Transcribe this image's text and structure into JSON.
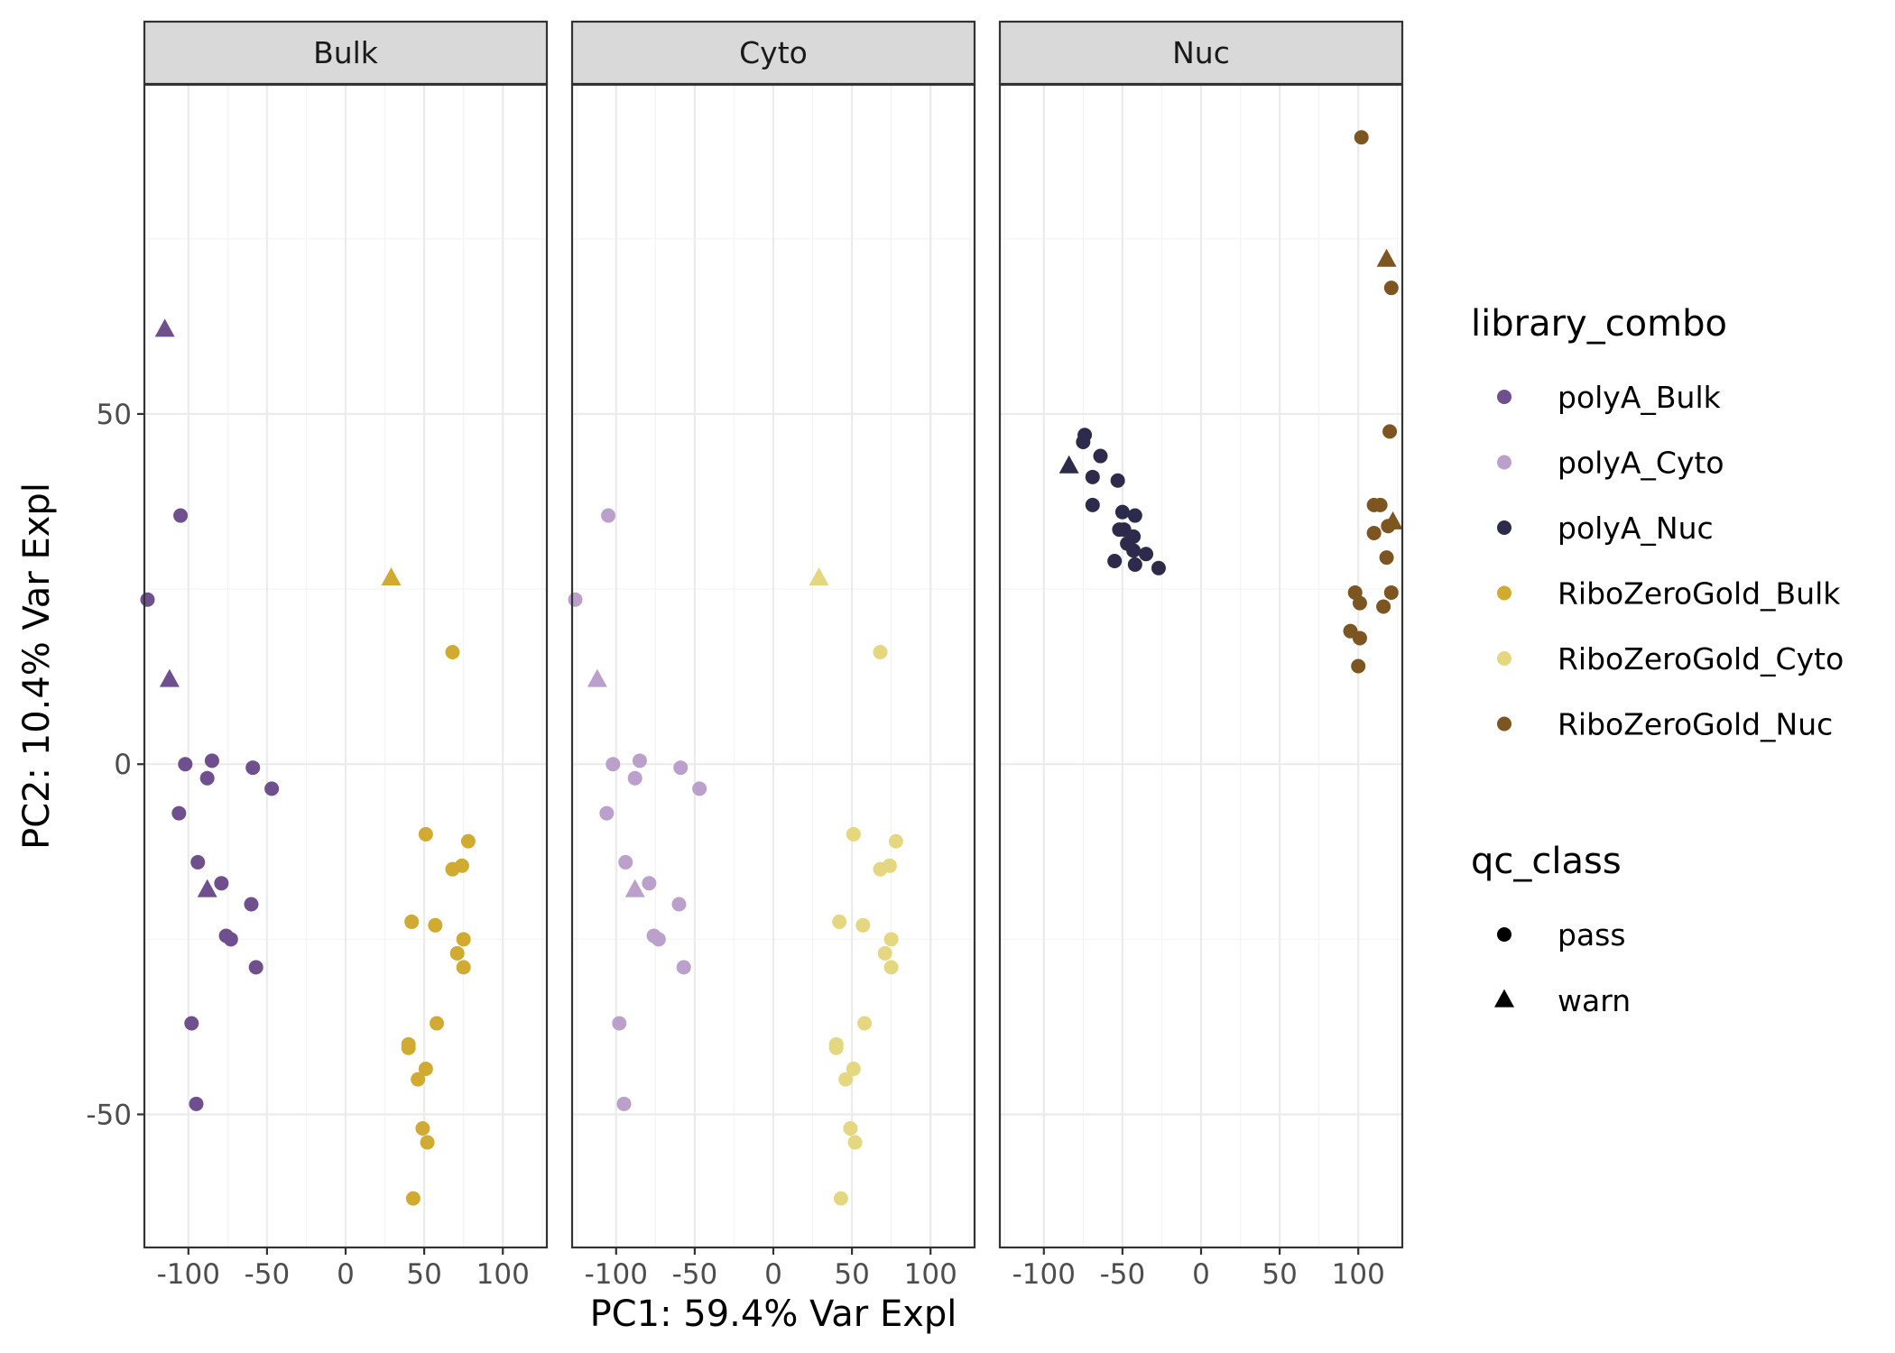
{
  "chart_data": {
    "type": "scatter",
    "xlabel": "PC1: 59.4% Var Expl",
    "ylabel": "PC2: 10.4% Var Expl",
    "xlim": [
      -128,
      128
    ],
    "ylim": [
      -69,
      97
    ],
    "x_ticks": [
      -100,
      -50,
      0,
      50,
      100
    ],
    "y_ticks": [
      -50,
      0,
      50
    ],
    "x_tick_labels": [
      "-100",
      "-50",
      "0",
      "50",
      "100"
    ],
    "y_tick_labels": [
      "-50",
      "0",
      "50"
    ],
    "grid": true,
    "facets": [
      "Bulk",
      "Cyto",
      "Nuc"
    ],
    "legends": [
      {
        "title": "library_combo",
        "entries": [
          {
            "label": "polyA_Bulk",
            "color": "#6f4f8e"
          },
          {
            "label": "polyA_Cyto",
            "color": "#bba0cc"
          },
          {
            "label": "polyA_Nuc",
            "color": "#2d2b4b"
          },
          {
            "label": "RiboZeroGold_Bulk",
            "color": "#d0aa31"
          },
          {
            "label": "RiboZeroGold_Cyto",
            "color": "#e5d77f"
          },
          {
            "label": "RiboZeroGold_Nuc",
            "color": "#7d5521"
          }
        ]
      },
      {
        "title": "qc_class",
        "entries": [
          {
            "label": "pass",
            "shape": "circle"
          },
          {
            "label": "warn",
            "shape": "triangle"
          }
        ]
      }
    ],
    "legend_position": "right",
    "series": [
      {
        "name": "polyA_Bulk",
        "panel": 0,
        "color": "#6f4f8e",
        "points": [
          {
            "x": -115,
            "y": 62,
            "qc": "warn"
          },
          {
            "x": -112,
            "y": 12,
            "qc": "warn"
          },
          {
            "x": -88,
            "y": -18,
            "qc": "warn"
          },
          {
            "x": -105,
            "y": 35.5,
            "qc": "pass"
          },
          {
            "x": -126,
            "y": 23.5,
            "qc": "pass"
          },
          {
            "x": -102,
            "y": 0,
            "qc": "pass"
          },
          {
            "x": -85,
            "y": 0.5,
            "qc": "pass"
          },
          {
            "x": -88,
            "y": -2,
            "qc": "pass"
          },
          {
            "x": -59,
            "y": -0.5,
            "qc": "pass"
          },
          {
            "x": -47,
            "y": -3.5,
            "qc": "pass"
          },
          {
            "x": -106,
            "y": -7,
            "qc": "pass"
          },
          {
            "x": -94,
            "y": -14,
            "qc": "pass"
          },
          {
            "x": -79,
            "y": -17,
            "qc": "pass"
          },
          {
            "x": -60,
            "y": -20,
            "qc": "pass"
          },
          {
            "x": -76,
            "y": -24.5,
            "qc": "pass"
          },
          {
            "x": -73,
            "y": -25,
            "qc": "pass"
          },
          {
            "x": -57,
            "y": -29,
            "qc": "pass"
          },
          {
            "x": -98,
            "y": -37,
            "qc": "pass"
          },
          {
            "x": -95,
            "y": -48.5,
            "qc": "pass"
          }
        ]
      },
      {
        "name": "RiboZeroGold_Bulk",
        "panel": 0,
        "color": "#d0aa31",
        "points": [
          {
            "x": 29,
            "y": 26.5,
            "qc": "warn"
          },
          {
            "x": 68,
            "y": 16,
            "qc": "pass"
          },
          {
            "x": 51,
            "y": -10,
            "qc": "pass"
          },
          {
            "x": 78,
            "y": -11,
            "qc": "pass"
          },
          {
            "x": 74,
            "y": -14.5,
            "qc": "pass"
          },
          {
            "x": 68,
            "y": -15,
            "qc": "pass"
          },
          {
            "x": 42,
            "y": -22.5,
            "qc": "pass"
          },
          {
            "x": 57,
            "y": -23,
            "qc": "pass"
          },
          {
            "x": 75,
            "y": -25,
            "qc": "pass"
          },
          {
            "x": 71,
            "y": -27,
            "qc": "pass"
          },
          {
            "x": 75,
            "y": -29,
            "qc": "pass"
          },
          {
            "x": 58,
            "y": -37,
            "qc": "pass"
          },
          {
            "x": 40,
            "y": -40,
            "qc": "pass"
          },
          {
            "x": 40,
            "y": -40.5,
            "qc": "pass"
          },
          {
            "x": 51,
            "y": -43.5,
            "qc": "pass"
          },
          {
            "x": 46,
            "y": -45,
            "qc": "pass"
          },
          {
            "x": 49,
            "y": -52,
            "qc": "pass"
          },
          {
            "x": 52,
            "y": -54,
            "qc": "pass"
          },
          {
            "x": 43,
            "y": -62,
            "qc": "pass"
          }
        ]
      },
      {
        "name": "polyA_Cyto",
        "panel": 1,
        "color": "#bba0cc",
        "points": [
          {
            "x": -112,
            "y": 12,
            "qc": "warn"
          },
          {
            "x": -88,
            "y": -18,
            "qc": "warn"
          },
          {
            "x": -105,
            "y": 35.5,
            "qc": "pass"
          },
          {
            "x": -126,
            "y": 23.5,
            "qc": "pass"
          },
          {
            "x": -102,
            "y": 0,
            "qc": "pass"
          },
          {
            "x": -85,
            "y": 0.5,
            "qc": "pass"
          },
          {
            "x": -88,
            "y": -2,
            "qc": "pass"
          },
          {
            "x": -59,
            "y": -0.5,
            "qc": "pass"
          },
          {
            "x": -47,
            "y": -3.5,
            "qc": "pass"
          },
          {
            "x": -106,
            "y": -7,
            "qc": "pass"
          },
          {
            "x": -94,
            "y": -14,
            "qc": "pass"
          },
          {
            "x": -79,
            "y": -17,
            "qc": "pass"
          },
          {
            "x": -60,
            "y": -20,
            "qc": "pass"
          },
          {
            "x": -76,
            "y": -24.5,
            "qc": "pass"
          },
          {
            "x": -73,
            "y": -25,
            "qc": "pass"
          },
          {
            "x": -57,
            "y": -29,
            "qc": "pass"
          },
          {
            "x": -98,
            "y": -37,
            "qc": "pass"
          },
          {
            "x": -95,
            "y": -48.5,
            "qc": "pass"
          }
        ]
      },
      {
        "name": "RiboZeroGold_Cyto",
        "panel": 1,
        "color": "#e5d77f",
        "points": [
          {
            "x": 29,
            "y": 26.5,
            "qc": "warn"
          },
          {
            "x": 68,
            "y": 16,
            "qc": "pass"
          },
          {
            "x": 51,
            "y": -10,
            "qc": "pass"
          },
          {
            "x": 78,
            "y": -11,
            "qc": "pass"
          },
          {
            "x": 74,
            "y": -14.5,
            "qc": "pass"
          },
          {
            "x": 68,
            "y": -15,
            "qc": "pass"
          },
          {
            "x": 42,
            "y": -22.5,
            "qc": "pass"
          },
          {
            "x": 57,
            "y": -23,
            "qc": "pass"
          },
          {
            "x": 75,
            "y": -25,
            "qc": "pass"
          },
          {
            "x": 71,
            "y": -27,
            "qc": "pass"
          },
          {
            "x": 75,
            "y": -29,
            "qc": "pass"
          },
          {
            "x": 58,
            "y": -37,
            "qc": "pass"
          },
          {
            "x": 40,
            "y": -40,
            "qc": "pass"
          },
          {
            "x": 40,
            "y": -40.5,
            "qc": "pass"
          },
          {
            "x": 51,
            "y": -43.5,
            "qc": "pass"
          },
          {
            "x": 46,
            "y": -45,
            "qc": "pass"
          },
          {
            "x": 49,
            "y": -52,
            "qc": "pass"
          },
          {
            "x": 52,
            "y": -54,
            "qc": "pass"
          },
          {
            "x": 43,
            "y": -62,
            "qc": "pass"
          }
        ]
      },
      {
        "name": "polyA_Nuc",
        "panel": 2,
        "color": "#2d2b4b",
        "points": [
          {
            "x": -84,
            "y": 42.5,
            "qc": "warn"
          },
          {
            "x": -74,
            "y": 47,
            "qc": "pass"
          },
          {
            "x": -75,
            "y": 46,
            "qc": "pass"
          },
          {
            "x": -64,
            "y": 44,
            "qc": "pass"
          },
          {
            "x": -69,
            "y": 41,
            "qc": "pass"
          },
          {
            "x": -53,
            "y": 40.5,
            "qc": "pass"
          },
          {
            "x": -69,
            "y": 37,
            "qc": "pass"
          },
          {
            "x": -50,
            "y": 36,
            "qc": "pass"
          },
          {
            "x": -42,
            "y": 35.5,
            "qc": "pass"
          },
          {
            "x": -52,
            "y": 33.5,
            "qc": "pass"
          },
          {
            "x": -49,
            "y": 33.5,
            "qc": "pass"
          },
          {
            "x": -43,
            "y": 32.5,
            "qc": "pass"
          },
          {
            "x": -47,
            "y": 31.5,
            "qc": "pass"
          },
          {
            "x": -43,
            "y": 30.5,
            "qc": "pass"
          },
          {
            "x": -35,
            "y": 30,
            "qc": "pass"
          },
          {
            "x": -55,
            "y": 29,
            "qc": "pass"
          },
          {
            "x": -42,
            "y": 28.5,
            "qc": "pass"
          },
          {
            "x": -27,
            "y": 28,
            "qc": "pass"
          }
        ]
      },
      {
        "name": "RiboZeroGold_Nuc",
        "panel": 2,
        "color": "#7d5521",
        "points": [
          {
            "x": 118,
            "y": 72,
            "qc": "warn"
          },
          {
            "x": 122,
            "y": 34.5,
            "qc": "warn"
          },
          {
            "x": 102,
            "y": 89.5,
            "qc": "pass"
          },
          {
            "x": 121,
            "y": 68,
            "qc": "pass"
          },
          {
            "x": 120,
            "y": 47.5,
            "qc": "pass"
          },
          {
            "x": 110,
            "y": 37,
            "qc": "pass"
          },
          {
            "x": 114,
            "y": 37,
            "qc": "pass"
          },
          {
            "x": 119,
            "y": 34,
            "qc": "pass"
          },
          {
            "x": 110,
            "y": 33,
            "qc": "pass"
          },
          {
            "x": 118,
            "y": 29.5,
            "qc": "pass"
          },
          {
            "x": 98,
            "y": 24.5,
            "qc": "pass"
          },
          {
            "x": 121,
            "y": 24.5,
            "qc": "pass"
          },
          {
            "x": 101,
            "y": 23,
            "qc": "pass"
          },
          {
            "x": 116,
            "y": 22.5,
            "qc": "pass"
          },
          {
            "x": 95,
            "y": 19,
            "qc": "pass"
          },
          {
            "x": 101,
            "y": 18,
            "qc": "pass"
          },
          {
            "x": 100,
            "y": 14,
            "qc": "pass"
          }
        ]
      }
    ]
  }
}
